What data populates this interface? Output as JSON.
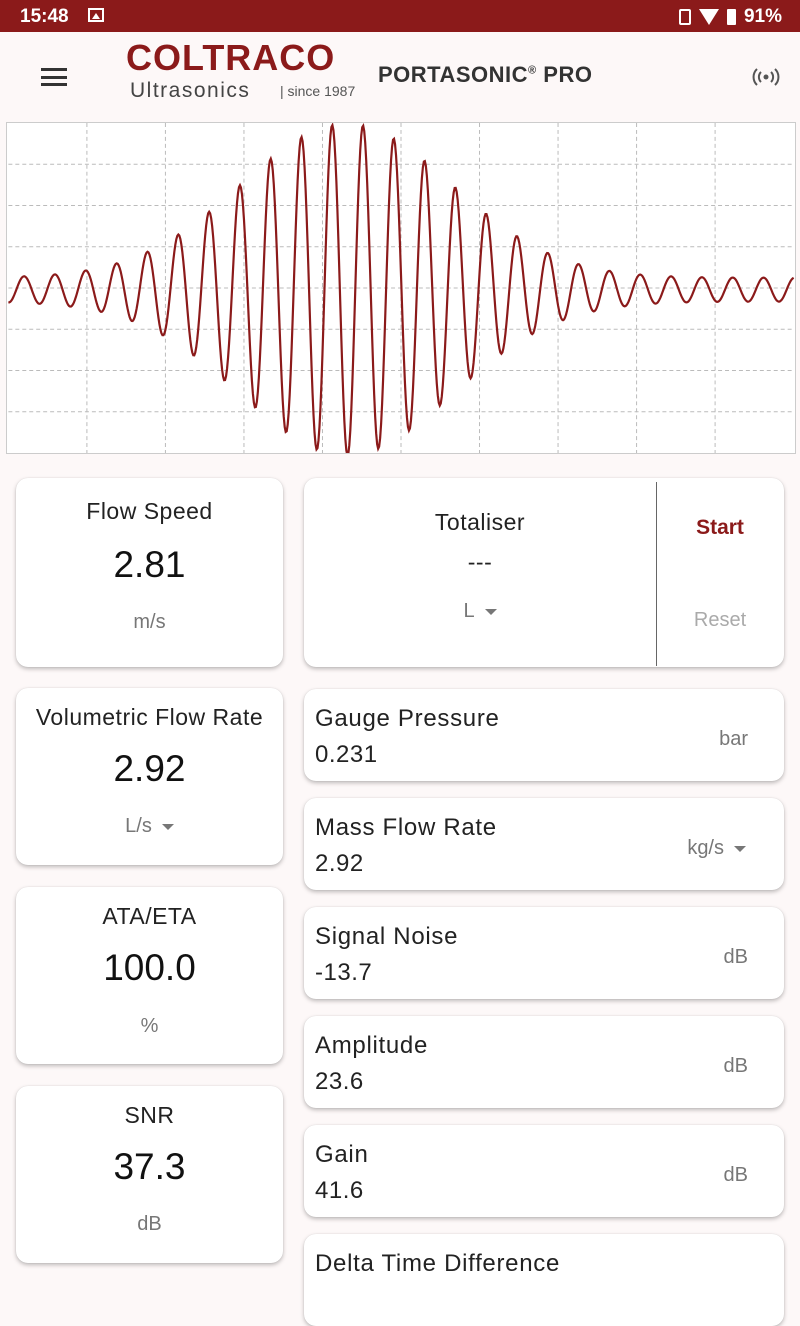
{
  "status_bar": {
    "time": "15:48",
    "battery": "91%",
    "icons": [
      "image-icon",
      "vibrate-icon",
      "wifi-icon",
      "battery-icon"
    ]
  },
  "header": {
    "menu_icon": "menu-icon",
    "logo_main": "COLTRACO",
    "logo_sub": "Ultrasonics",
    "logo_since": "| since 1987",
    "product": "PORTASONIC",
    "product_reg": "®",
    "product_suffix": " PRO",
    "broadcast_icon": "broadcast-icon"
  },
  "colors": {
    "brand": "#8b1a1a",
    "background": "#fdf8f8",
    "waveform": "#8b1a1a",
    "muted": "#777777"
  },
  "flow_speed": {
    "title": "Flow Speed",
    "value": "2.81",
    "unit": "m/s"
  },
  "totaliser": {
    "title": "Totaliser",
    "value": "---",
    "unit": "L",
    "start": "Start",
    "reset": "Reset"
  },
  "volumetric": {
    "title": "Volumetric Flow Rate",
    "value": "2.92",
    "unit": "L/s"
  },
  "ata_eta": {
    "title": "ATA/ETA",
    "value": "100.0",
    "unit": "%"
  },
  "snr": {
    "title": "SNR",
    "value": "37.3",
    "unit": "dB"
  },
  "gauge_pressure": {
    "title": "Gauge Pressure",
    "value": "0.231",
    "unit": "bar"
  },
  "mass_flow": {
    "title": "Mass Flow Rate",
    "value": "2.92",
    "unit": "kg/s"
  },
  "signal_noise": {
    "title": "Signal Noise",
    "value": "-13.7",
    "unit": "dB"
  },
  "amplitude": {
    "title": "Amplitude",
    "value": "23.6",
    "unit": "dB"
  },
  "gain": {
    "title": "Gain",
    "value": "41.6",
    "unit": "dB"
  },
  "delta_time": {
    "title": "Delta Time Difference"
  }
}
